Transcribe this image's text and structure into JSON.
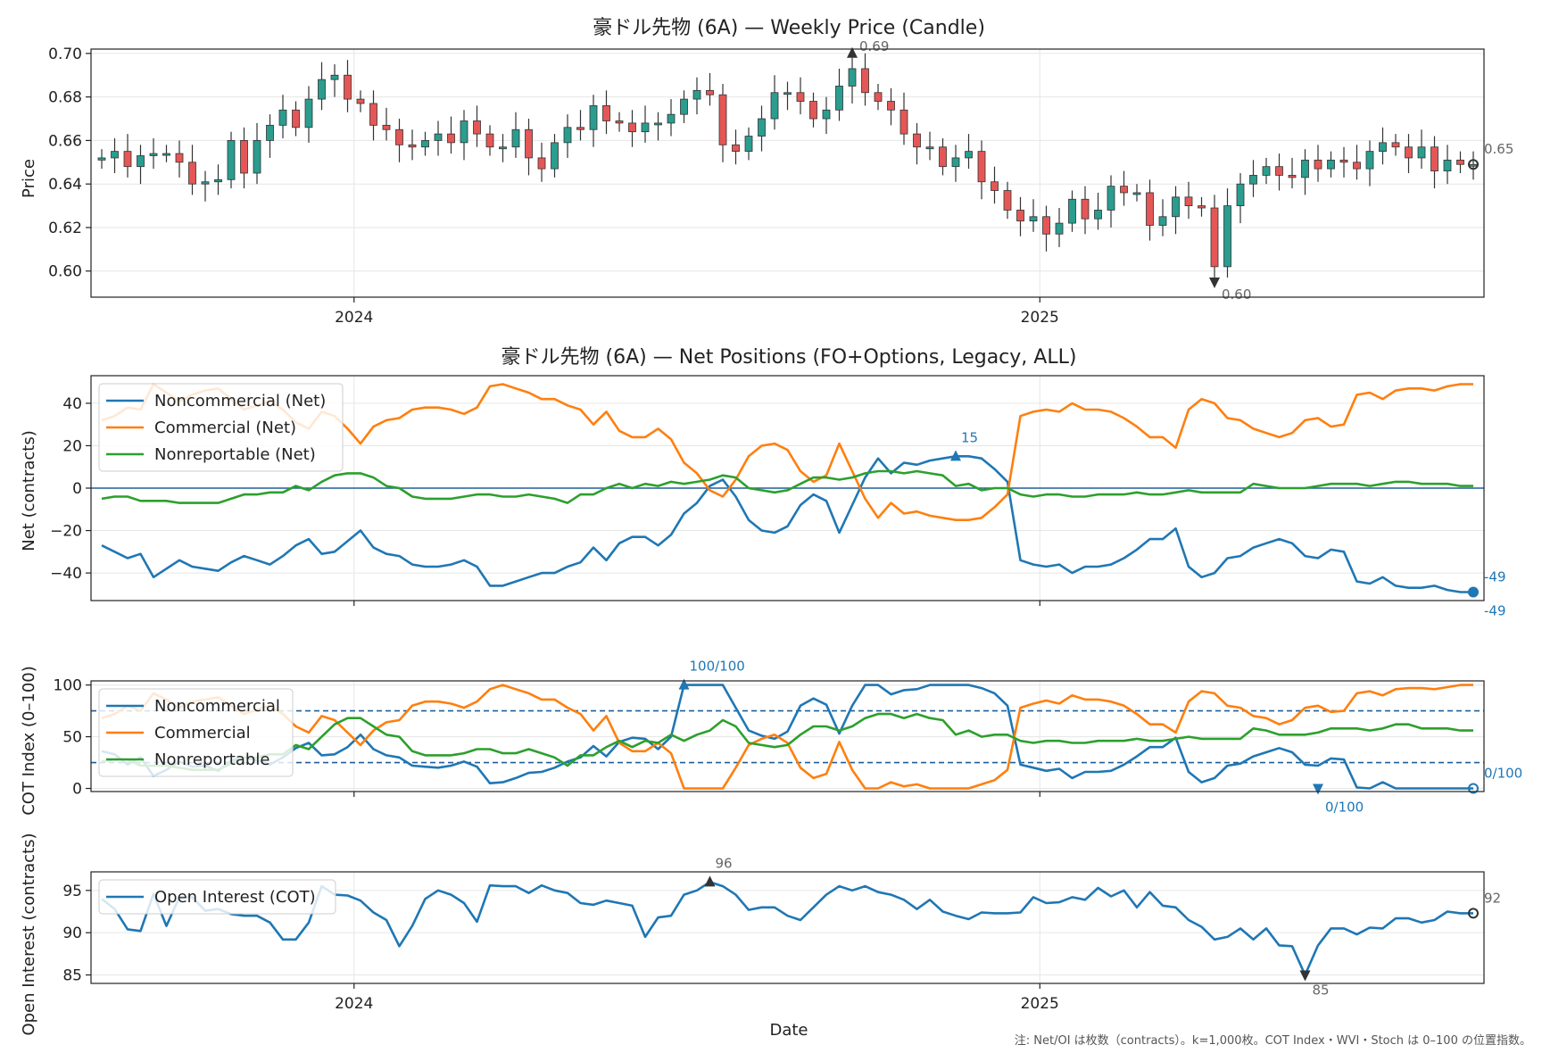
{
  "chart_data": [
    {
      "type": "candlestick",
      "title": "豪ドル先物 (6A) — Weekly Price (Candle)",
      "ylabel": "Price",
      "ylim": [
        0.588,
        0.702
      ],
      "yticks": [
        "0.60",
        "0.62",
        "0.64",
        "0.66",
        "0.68",
        "0.70"
      ],
      "ytick_values": [
        0.6,
        0.62,
        0.64,
        0.66,
        0.68,
        0.7
      ],
      "grid": true,
      "close": [
        0.652,
        0.655,
        0.648,
        0.653,
        0.654,
        0.654,
        0.65,
        0.64,
        0.641,
        0.642,
        0.66,
        0.645,
        0.66,
        0.667,
        0.674,
        0.666,
        0.679,
        0.688,
        0.69,
        0.679,
        0.677,
        0.667,
        0.665,
        0.658,
        0.657,
        0.66,
        0.663,
        0.659,
        0.669,
        0.663,
        0.657,
        0.657,
        0.665,
        0.652,
        0.647,
        0.659,
        0.666,
        0.665,
        0.676,
        0.669,
        0.668,
        0.664,
        0.668,
        0.668,
        0.672,
        0.679,
        0.683,
        0.681,
        0.658,
        0.655,
        0.662,
        0.67,
        0.682,
        0.682,
        0.678,
        0.67,
        0.674,
        0.685,
        0.693,
        0.682,
        0.678,
        0.674,
        0.663,
        0.657,
        0.657,
        0.648,
        0.652,
        0.655,
        0.641,
        0.637,
        0.628,
        0.623,
        0.625,
        0.617,
        0.622,
        0.633,
        0.624,
        0.628,
        0.639,
        0.636,
        0.636,
        0.621,
        0.625,
        0.634,
        0.63,
        0.629,
        0.602,
        0.63,
        0.64,
        0.644,
        0.648,
        0.644,
        0.643,
        0.651,
        0.647,
        0.651,
        0.65,
        0.647,
        0.655,
        0.659,
        0.657,
        0.652,
        0.657,
        0.646,
        0.651,
        0.649,
        0.649
      ],
      "marker_high": "0.69",
      "marker_low": "0.60",
      "last_value": "0.65"
    },
    {
      "type": "line",
      "title": "豪ドル先物 (6A) — Net Positions (FO+Options, Legacy, ALL)",
      "ylabel": "Net (contracts)",
      "ylim": [
        -53,
        53
      ],
      "yticks": [
        "−40",
        "−20",
        "0",
        "20",
        "40"
      ],
      "ytick_values": [
        -40,
        -20,
        0,
        20,
        40
      ],
      "legend": "upper-left",
      "grid": true,
      "series": [
        {
          "name": "Noncommercial (Net)",
          "color": "#1f77b4",
          "values": [
            -27,
            -30,
            -33,
            -31,
            -42,
            -38,
            -34,
            -37,
            -38,
            -39,
            -35,
            -32,
            -34,
            -36,
            -32,
            -27,
            -24,
            -31,
            -30,
            -25,
            -20,
            -28,
            -31,
            -32,
            -36,
            -37,
            -37,
            -36,
            -34,
            -37,
            -46,
            -46,
            -44,
            -42,
            -40,
            -40,
            -37,
            -35,
            -28,
            -34,
            -26,
            -23,
            -23,
            -27,
            -22,
            -12,
            -7,
            1,
            4,
            -4,
            -15,
            -20,
            -21,
            -18,
            -8,
            -3,
            -6,
            -21,
            -8,
            5,
            14,
            7,
            12,
            11,
            13,
            14,
            15,
            15,
            14,
            9,
            3,
            -34,
            -36,
            -37,
            -36,
            -40,
            -37,
            -37,
            -36,
            -33,
            -29,
            -24,
            -24,
            -19,
            -37,
            -42,
            -40,
            -33,
            -32,
            -28,
            -26,
            -24,
            -26,
            -32,
            -33,
            -29,
            -30,
            -44,
            -45,
            -42,
            -46,
            -47,
            -47,
            -46,
            -48,
            -49,
            -49
          ]
        },
        {
          "name": "Commercial (Net)",
          "color": "#ff7f0e",
          "values": [
            32,
            34,
            38,
            37,
            49,
            45,
            41,
            44,
            46,
            47,
            42,
            37,
            39,
            41,
            37,
            31,
            28,
            36,
            34,
            28,
            21,
            29,
            32,
            33,
            37,
            38,
            38,
            37,
            35,
            38,
            48,
            49,
            47,
            45,
            42,
            42,
            39,
            37,
            30,
            36,
            27,
            24,
            24,
            28,
            23,
            12,
            7,
            -1,
            -4,
            4,
            15,
            20,
            21,
            18,
            8,
            3,
            6,
            21,
            8,
            -5,
            -14,
            -7,
            -12,
            -11,
            -13,
            -14,
            -15,
            -15,
            -14,
            -9,
            -3,
            34,
            36,
            37,
            36,
            40,
            37,
            37,
            36,
            33,
            29,
            24,
            24,
            19,
            37,
            42,
            40,
            33,
            32,
            28,
            26,
            24,
            26,
            32,
            33,
            29,
            30,
            44,
            45,
            42,
            46,
            47,
            47,
            46,
            48,
            49,
            49
          ]
        },
        {
          "name": "Nonreportable (Net)",
          "color": "#2ca02c",
          "values": [
            -5,
            -4,
            -4,
            -6,
            -6,
            -6,
            -7,
            -7,
            -7,
            -7,
            -5,
            -3,
            -3,
            -2,
            -2,
            1,
            -1,
            3,
            6,
            7,
            7,
            5,
            1,
            0,
            -4,
            -5,
            -5,
            -5,
            -4,
            -3,
            -3,
            -4,
            -4,
            -3,
            -4,
            -5,
            -7,
            -3,
            -3,
            0,
            2,
            0,
            2,
            1,
            3,
            2,
            3,
            4,
            6,
            5,
            0,
            -1,
            -2,
            -1,
            2,
            5,
            5,
            4,
            5,
            7,
            8,
            8,
            7,
            8,
            7,
            6,
            1,
            2,
            -1,
            0,
            0,
            -3,
            -4,
            -3,
            -3,
            -4,
            -4,
            -3,
            -3,
            -3,
            -2,
            -3,
            -3,
            -2,
            -1,
            -2,
            -2,
            -2,
            -2,
            2,
            1,
            0,
            0,
            0,
            1,
            2,
            2,
            2,
            1,
            2,
            3,
            3,
            2,
            2,
            2,
            1,
            1
          ]
        }
      ],
      "marker_high": "15",
      "last_value": "-49",
      "marker_low": "-49"
    },
    {
      "type": "line",
      "title": "",
      "ylabel": "COT Index (0–100)",
      "ylim": [
        -3,
        104
      ],
      "yticks": [
        "0",
        "50",
        "100"
      ],
      "ytick_values": [
        0,
        50,
        100
      ],
      "hlines": [
        25,
        75
      ],
      "legend": "upper-left",
      "grid": true,
      "series": [
        {
          "name": "Noncommercial",
          "color": "#1f77b4",
          "values": [
            36,
            33,
            23,
            30,
            12,
            18,
            26,
            21,
            22,
            17,
            27,
            30,
            27,
            23,
            30,
            39,
            44,
            32,
            33,
            40,
            52,
            38,
            32,
            30,
            22,
            21,
            20,
            22,
            26,
            21,
            5,
            6,
            10,
            15,
            16,
            20,
            26,
            30,
            41,
            31,
            45,
            49,
            48,
            38,
            50,
            100,
            100,
            100,
            100,
            78,
            56,
            51,
            48,
            55,
            80,
            87,
            81,
            53,
            80,
            100,
            100,
            91,
            95,
            96,
            100,
            100,
            100,
            100,
            97,
            92,
            80,
            23,
            20,
            17,
            19,
            10,
            16,
            16,
            17,
            23,
            31,
            40,
            40,
            49,
            16,
            6,
            10,
            22,
            24,
            31,
            35,
            39,
            35,
            23,
            22,
            29,
            28,
            1,
            0,
            6,
            0,
            0,
            0,
            0,
            0,
            0,
            0
          ]
        },
        {
          "name": "Commercial",
          "color": "#ff7f0e",
          "values": [
            68,
            72,
            80,
            75,
            92,
            86,
            78,
            84,
            86,
            88,
            80,
            72,
            76,
            80,
            72,
            60,
            54,
            70,
            66,
            54,
            42,
            56,
            64,
            66,
            80,
            84,
            84,
            82,
            78,
            84,
            96,
            100,
            96,
            92,
            86,
            86,
            78,
            72,
            56,
            70,
            44,
            36,
            36,
            44,
            34,
            0,
            0,
            0,
            0,
            20,
            42,
            48,
            52,
            44,
            20,
            10,
            14,
            45,
            18,
            0,
            0,
            6,
            2,
            4,
            0,
            0,
            0,
            0,
            4,
            8,
            18,
            78,
            82,
            85,
            82,
            90,
            86,
            86,
            84,
            80,
            72,
            62,
            62,
            54,
            84,
            94,
            92,
            80,
            78,
            70,
            68,
            62,
            66,
            78,
            80,
            74,
            75,
            92,
            94,
            90,
            96,
            97,
            97,
            96,
            98,
            100,
            100
          ]
        },
        {
          "name": "Nonreportable",
          "color": "#2ca02c",
          "values": [
            26,
            28,
            28,
            22,
            22,
            22,
            20,
            18,
            18,
            18,
            24,
            30,
            30,
            33,
            33,
            42,
            38,
            50,
            62,
            68,
            68,
            60,
            52,
            50,
            36,
            32,
            32,
            32,
            34,
            38,
            38,
            34,
            34,
            38,
            34,
            30,
            22,
            32,
            32,
            40,
            46,
            40,
            46,
            44,
            52,
            46,
            52,
            56,
            66,
            60,
            44,
            42,
            40,
            42,
            52,
            60,
            60,
            56,
            60,
            68,
            72,
            72,
            68,
            72,
            68,
            66,
            52,
            56,
            50,
            52,
            52,
            46,
            44,
            46,
            46,
            44,
            44,
            46,
            46,
            46,
            48,
            46,
            46,
            48,
            50,
            48,
            48,
            48,
            48,
            58,
            56,
            52,
            52,
            52,
            54,
            58,
            58,
            58,
            56,
            58,
            62,
            62,
            58,
            58,
            58,
            56,
            56
          ]
        }
      ],
      "marker_high": "100/100",
      "last_value": "0/100",
      "marker_low": "0/100"
    },
    {
      "type": "line",
      "title": "",
      "xlabel": "Date",
      "ylabel": "Open Interest (contracts)",
      "ylim": [
        84,
        97.2
      ],
      "yticks": [
        "85",
        "90",
        "95"
      ],
      "ytick_values": [
        85,
        90,
        95
      ],
      "legend": "upper-left",
      "grid": true,
      "series": [
        {
          "name": "Open Interest (COT)",
          "color": "#1f77b4",
          "values": [
            94,
            92.8,
            90.4,
            90.2,
            94.6,
            90.8,
            94.2,
            94.2,
            92.6,
            92.8,
            92.2,
            92,
            92,
            91.2,
            89.2,
            89.2,
            91.2,
            95.5,
            94.5,
            94.4,
            93.8,
            92.4,
            91.5,
            88.4,
            90.8,
            94,
            95,
            94.5,
            93.5,
            91.3,
            95.6,
            95.5,
            95.5,
            94.7,
            95.6,
            95,
            94.7,
            93.5,
            93.3,
            93.8,
            93.5,
            93.2,
            89.5,
            91.8,
            92,
            94.5,
            95,
            96,
            95.5,
            94.5,
            92.7,
            93,
            93,
            92,
            91.5,
            93,
            94.5,
            95.5,
            95,
            95.5,
            94.8,
            94.5,
            93.9,
            92.8,
            93.9,
            92.5,
            92,
            91.6,
            92.4,
            92.3,
            92.3,
            92.4,
            94.2,
            93.5,
            93.6,
            94.2,
            93.9,
            95.3,
            94.3,
            95,
            93,
            94.8,
            93.2,
            93,
            91.5,
            90.7,
            89.2,
            89.5,
            90.5,
            89.2,
            90.5,
            88.5,
            88.4,
            85,
            88.5,
            90.5,
            90.5,
            89.8,
            90.6,
            90.5,
            91.7,
            91.7,
            91.2,
            91.5,
            92.5,
            92.3,
            92.3
          ]
        }
      ],
      "marker_high": "96",
      "marker_low": "85",
      "last_value": "92"
    }
  ],
  "x_axis": {
    "n_weeks": 107,
    "year_ticks": [
      {
        "label": "2024",
        "index": 19.5
      },
      {
        "label": "2025",
        "index": 72.5
      }
    ]
  },
  "colors": {
    "up": "#2a9d8f",
    "down": "#e45756",
    "zero_line": "#1f5f9a",
    "marker_dark": "#333333",
    "marker_blue": "#1f77b4",
    "annotation_gray": "#666666"
  },
  "footnote": "注: Net/OI は枚数（contracts）。k=1,000枚。COT Index・WVI・Stoch は 0–100 の位置指数。"
}
